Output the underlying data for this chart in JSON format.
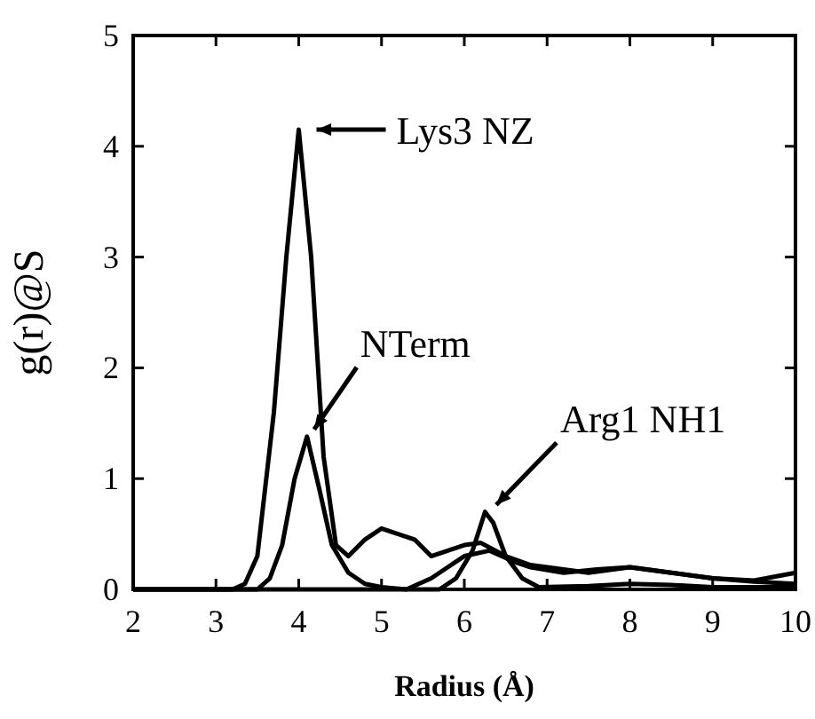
{
  "chart_data": {
    "type": "line",
    "xlabel": "Radius (Å)",
    "ylabel": "g(r)@S",
    "xlim": [
      2,
      10
    ],
    "xticks": [
      2,
      3,
      4,
      5,
      6,
      7,
      8,
      9,
      10
    ],
    "ylim": [
      0,
      5
    ],
    "yticks": [
      0,
      1,
      2,
      3,
      4,
      5
    ],
    "grid": false,
    "line_style": "solid",
    "marker": "none",
    "series": [
      {
        "color": "#000000",
        "x": [
          2,
          3.2,
          3.35,
          3.5,
          3.7,
          3.85,
          4.0,
          4.15,
          4.3,
          4.45,
          4.6,
          4.8,
          5.0,
          5.2,
          5.4,
          5.6,
          5.8,
          6.0,
          6.2,
          6.5,
          6.8,
          7.0,
          7.5,
          8.0,
          8.5,
          9.0,
          9.5,
          10
        ],
        "values": [
          0,
          0,
          0.05,
          0.3,
          1.6,
          3.0,
          4.15,
          3.0,
          1.2,
          0.4,
          0.3,
          0.45,
          0.55,
          0.5,
          0.45,
          0.3,
          0.35,
          0.4,
          0.42,
          0.3,
          0.22,
          0.2,
          0.15,
          0.2,
          0.15,
          0.1,
          0.08,
          0.15
        ]
      },
      {
        "color": "#000000",
        "x": [
          2,
          3.5,
          3.65,
          3.8,
          3.95,
          4.1,
          4.25,
          4.4,
          4.6,
          4.8,
          5.0,
          5.3,
          5.6,
          5.8,
          6.0,
          6.3,
          6.6,
          6.8,
          7.2,
          7.6,
          8.0,
          8.5,
          9.0,
          9.5,
          10
        ],
        "values": [
          0,
          0,
          0.1,
          0.4,
          1.0,
          1.38,
          0.9,
          0.4,
          0.15,
          0.05,
          0.02,
          0,
          0.1,
          0.2,
          0.3,
          0.35,
          0.25,
          0.2,
          0.15,
          0.18,
          0.2,
          0.15,
          0.1,
          0.07,
          0.05
        ]
      },
      {
        "color": "#000000",
        "x": [
          2,
          5.7,
          5.9,
          6.1,
          6.25,
          6.35,
          6.5,
          6.7,
          6.9,
          7.5,
          8.0,
          8.5,
          9.0,
          10
        ],
        "values": [
          0,
          0,
          0.1,
          0.35,
          0.7,
          0.6,
          0.3,
          0.1,
          0.02,
          0.03,
          0.05,
          0.04,
          0.02,
          0.02
        ]
      }
    ],
    "annotations": [
      {
        "text": "Lys3 NZ",
        "x": 4.0,
        "y": 4.15
      },
      {
        "text": "NTerm",
        "x": 4.1,
        "y": 1.38
      },
      {
        "text": "Arg1 NH1",
        "x": 6.3,
        "y": 0.7
      }
    ]
  }
}
